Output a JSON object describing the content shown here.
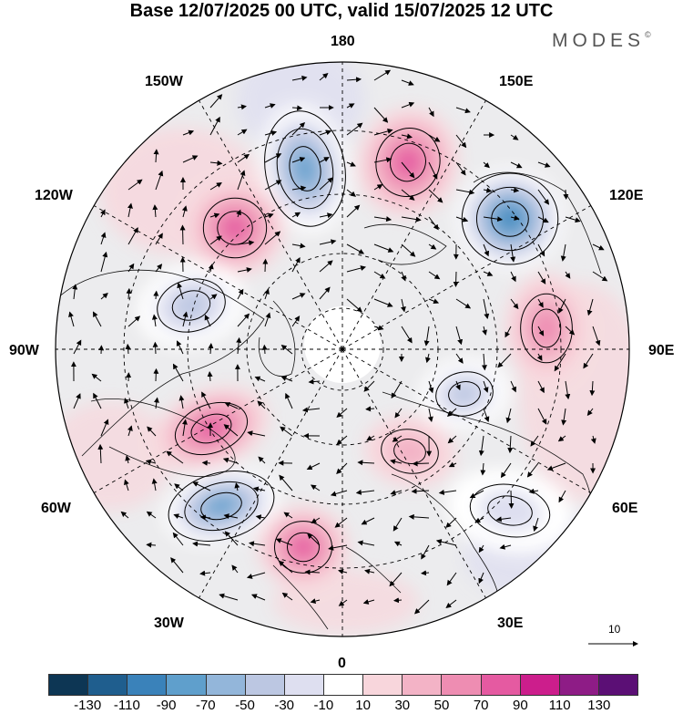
{
  "title": "Base 12/07/2025 00 UTC, valid 15/07/2025 12 UTC",
  "brand": "MODES",
  "brand_mark": "©",
  "longitude_labels": {
    "top": "180",
    "bottom": "0",
    "left": "90W",
    "right": "90E",
    "upper_left_outer": "150W",
    "upper_left_inner": "120W",
    "lower_left_outer": "60W",
    "lower_left_inner": "30W",
    "upper_right_outer": "150E",
    "upper_right_inner": "120E",
    "lower_right_outer": "60E",
    "lower_right_inner": "30E"
  },
  "reference_vector_label": "10",
  "colorbar": {
    "tick_labels": [
      "-130",
      "-110",
      "-90",
      "-70",
      "-50",
      "-30",
      "-10",
      "10",
      "30",
      "50",
      "70",
      "90",
      "110",
      "130"
    ],
    "colors": [
      "#0d3654",
      "#1f5e8e",
      "#3a82ba",
      "#5f9fcc",
      "#93b6da",
      "#bcc7e2",
      "#dedff0",
      "#ffffff",
      "#f8d6dc",
      "#f3b3c6",
      "#ee8db2",
      "#e55aa1",
      "#cc1e8c",
      "#8e1c86",
      "#5b0f75"
    ]
  },
  "anomaly_features": [
    {
      "sign": "negative",
      "value": -90
    },
    {
      "sign": "positive",
      "value": 70
    },
    {
      "sign": "negative",
      "value": -110
    },
    {
      "sign": "positive",
      "value": 70
    },
    {
      "sign": "positive",
      "value": 50
    },
    {
      "sign": "negative",
      "value": -50
    },
    {
      "sign": "negative",
      "value": -60
    },
    {
      "sign": "positive",
      "value": 70
    },
    {
      "sign": "positive",
      "value": 40
    },
    {
      "sign": "negative",
      "value": -90
    },
    {
      "sign": "positive",
      "value": 70
    },
    {
      "sign": "negative",
      "value": -40
    }
  ]
}
